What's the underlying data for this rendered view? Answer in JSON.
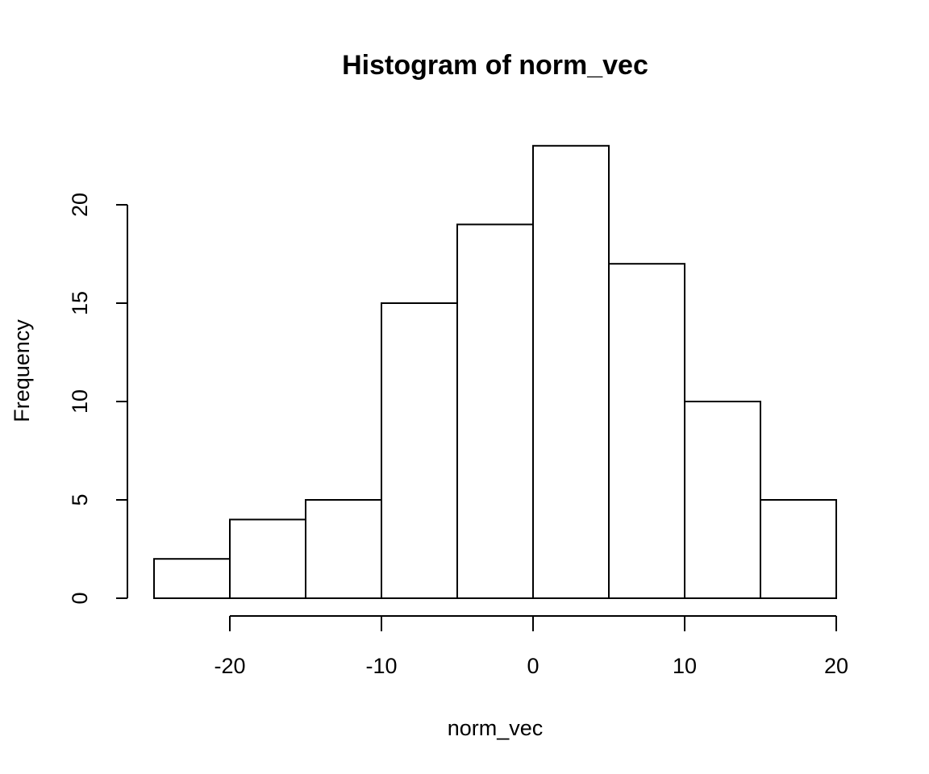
{
  "chart_data": {
    "type": "bar",
    "title": "Histogram of norm_vec",
    "xlabel": "norm_vec",
    "ylabel": "Frequency",
    "bins": [
      {
        "from": -25,
        "to": -20,
        "count": 2
      },
      {
        "from": -20,
        "to": -15,
        "count": 4
      },
      {
        "from": -15,
        "to": -10,
        "count": 5
      },
      {
        "from": -10,
        "to": -5,
        "count": 15
      },
      {
        "from": -5,
        "to": 0,
        "count": 19
      },
      {
        "from": 0,
        "to": 5,
        "count": 23
      },
      {
        "from": 5,
        "to": 10,
        "count": 17
      },
      {
        "from": 10,
        "to": 15,
        "count": 10
      },
      {
        "from": 15,
        "to": 20,
        "count": 5
      }
    ],
    "xticks": [
      "-20",
      "-10",
      "0",
      "10",
      "20"
    ],
    "yticks": [
      "0",
      "5",
      "10",
      "15",
      "20"
    ],
    "xlim": [
      -25,
      20
    ],
    "ylim": [
      0,
      23
    ],
    "grid": false,
    "bar_fill": "#ffffff",
    "bar_stroke": "#000000"
  }
}
